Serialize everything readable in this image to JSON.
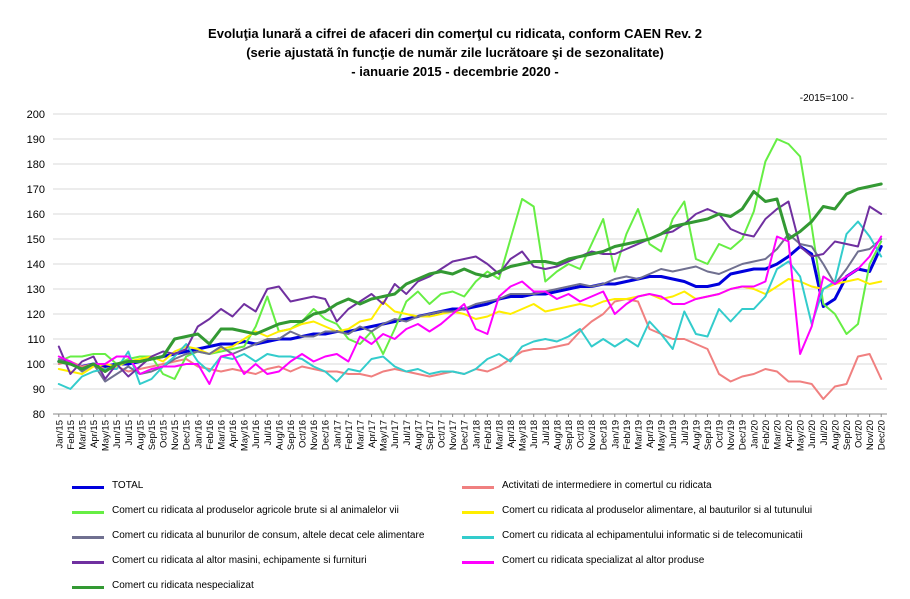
{
  "chart_data": {
    "type": "line",
    "title": [
      "Evoluţia lunară a cifrei de afaceri din comerţul cu ridicata,  conform CAEN Rev. 2",
      "(serie ajustată în funcţie de număr zile lucrătoare şi de sezonalitate)",
      "- ianuarie 2015 - decembrie  2020  -"
    ],
    "note": "-2015=100 -",
    "xlabel": "",
    "ylabel": "",
    "ylim": [
      80,
      200
    ],
    "yticks": [
      80,
      90,
      100,
      110,
      120,
      130,
      140,
      150,
      160,
      170,
      180,
      190,
      200
    ],
    "grid": true,
    "legend_position": "bottom",
    "x": [
      "Jan/15",
      "Feb/15",
      "Mar/15",
      "Apr/15",
      "May/15",
      "Jun/15",
      "Jul/15",
      "Aug/15",
      "Sep/15",
      "Oct/15",
      "Nov/15",
      "Dec/15",
      "Jan/16",
      "Feb/16",
      "Mar/16",
      "Apr/16",
      "May/16",
      "Jun/16",
      "Jul/16",
      "Aug/16",
      "Sep/16",
      "Oct/16",
      "Nov/16",
      "Dec/16",
      "Jan/17",
      "Feb/17",
      "Mar/17",
      "Apr/17",
      "May/17",
      "Jun/17",
      "Jul/17",
      "Aug/17",
      "Sep/17",
      "Oct/17",
      "Nov/17",
      "Dec/17",
      "Jan/18",
      "Feb/18",
      "Mar/18",
      "Apr/18",
      "May/18",
      "Jun/18",
      "Jul/18",
      "Aug/18",
      "Sep/18",
      "Oct/18",
      "Nov/18",
      "Dec/18",
      "Jan/19",
      "Feb/19",
      "Mar/19",
      "Apr/19",
      "May/19",
      "Jun/19",
      "Jul/19",
      "Aug/19",
      "Sep/19",
      "Oct/19",
      "Nov/19",
      "Dec/19",
      "Jan/20",
      "Feb/20",
      "Mar/20",
      "Apr/20",
      "May/20",
      "Jun/20",
      "Jul/20",
      "Aug/20",
      "Sep/20",
      "Oct/20",
      "Nov/20",
      "Dec/20"
    ],
    "tick_labels": [
      "Jan/15",
      "Mar/15",
      "May/15",
      "Jul/15",
      "Sep/15",
      "Nov/15",
      "Jan/16",
      "Mar/16",
      "May/16",
      "Jul/16",
      "Sep/16",
      "Nov/16",
      "Jan/17",
      "Mar/17",
      "May/17",
      "Jul/17",
      "Sep/17",
      "Nov/17",
      "Jan/18",
      "Mar/18",
      "May/18",
      "Jul/18",
      "Sep/18",
      "Nov/18",
      "Jan/19",
      "Mar/19",
      "May/19",
      "Jul/19",
      "Sep/19",
      "Nov/19",
      "Jan/20",
      "Mar/20",
      "May/20",
      "Jul/20",
      "Sep/20",
      "Nov/20",
      "Feb/15",
      "Apr/15",
      "Jun/15",
      "Aug/15",
      "Oct/15",
      "Dec/15",
      "Feb/16",
      "Apr/16",
      "Jun/16",
      "Aug/16",
      "Oct/16",
      "Dec/16",
      "Feb/17",
      "Apr/17",
      "Jun/17",
      "Aug/17",
      "Oct/17",
      "Dec/17",
      "Feb/18",
      "Apr/18",
      "Jun/18",
      "Aug/18",
      "Oct/18",
      "Dec/18",
      "Feb/19",
      "Apr/19",
      "Jun/19",
      "Aug/19",
      "Oct/19",
      "Dec/19",
      "Feb/20",
      "Apr/20",
      "Jun/20",
      "Aug/20",
      "Oct/20",
      "Dec/20"
    ],
    "series": [
      {
        "name": "TOTAL",
        "color": "#0000dd",
        "width": 3,
        "values": [
          101,
          100,
          99,
          100,
          99,
          100,
          100,
          101,
          102,
          103,
          104,
          105,
          106,
          107,
          108,
          108,
          109,
          108,
          109,
          110,
          110,
          111,
          112,
          112,
          113,
          113,
          114,
          115,
          116,
          117,
          118,
          119,
          120,
          121,
          122,
          122,
          123,
          124,
          126,
          127,
          127,
          128,
          128,
          129,
          130,
          131,
          131,
          132,
          132,
          133,
          134,
          135,
          135,
          134,
          133,
          131,
          131,
          132,
          136,
          137,
          138,
          138,
          140,
          143,
          147,
          144,
          123,
          126,
          135,
          138,
          137,
          147
        ]
      },
      {
        "name": "Activitati de intermediere in comertul cu ridicata",
        "color": "#f08080",
        "width": 2,
        "values": [
          100,
          101,
          99,
          100,
          98,
          99,
          97,
          98,
          99,
          100,
          101,
          102,
          99,
          98,
          97,
          98,
          97,
          96,
          98,
          99,
          97,
          99,
          98,
          97,
          97,
          96,
          96,
          95,
          97,
          98,
          97,
          96,
          95,
          96,
          97,
          96,
          98,
          97,
          99,
          102,
          105,
          106,
          106,
          107,
          108,
          113,
          117,
          120,
          125,
          126,
          125,
          114,
          112,
          110,
          110,
          108,
          106,
          96,
          93,
          95,
          96,
          98,
          97,
          93,
          93,
          92,
          86,
          91,
          92,
          103,
          104,
          94
        ]
      },
      {
        "name": "Comert cu ridicata al produselor agricole brute si al animalelor vii",
        "color": "#66ee44",
        "width": 2,
        "values": [
          101,
          103,
          103,
          104,
          104,
          100,
          102,
          103,
          103,
          96,
          94,
          103,
          105,
          104,
          105,
          106,
          107,
          115,
          127,
          113,
          114,
          117,
          122,
          118,
          116,
          110,
          108,
          113,
          104,
          114,
          125,
          129,
          124,
          128,
          129,
          127,
          133,
          137,
          134,
          150,
          166,
          163,
          133,
          137,
          140,
          138,
          148,
          158,
          137,
          152,
          162,
          148,
          145,
          158,
          165,
          142,
          140,
          148,
          146,
          150,
          161,
          181,
          190,
          188,
          183,
          155,
          124,
          120,
          112,
          116,
          140,
          149
        ]
      },
      {
        "name": "Comert cu ridicata al produselor alimentare, al bauturilor si al tutunului",
        "color": "#ffee00",
        "width": 2,
        "values": [
          98,
          97,
          96,
          99,
          100,
          99,
          101,
          102,
          103,
          101,
          105,
          107,
          106,
          104,
          106,
          107,
          110,
          113,
          111,
          113,
          114,
          116,
          117,
          115,
          113,
          114,
          117,
          118,
          125,
          121,
          120,
          119,
          119,
          120,
          121,
          120,
          118,
          119,
          121,
          120,
          122,
          124,
          121,
          122,
          123,
          124,
          123,
          125,
          126,
          126,
          127,
          128,
          126,
          127,
          129,
          126,
          127,
          128,
          130,
          131,
          130,
          128,
          131,
          134,
          133,
          131,
          130,
          132,
          133,
          134,
          132,
          133
        ]
      },
      {
        "name": "Comert cu ridicata al bunurilor de consum, altele decat cele alimentare",
        "color": "#707090",
        "width": 2,
        "values": [
          102,
          101,
          97,
          100,
          93,
          96,
          99,
          96,
          97,
          99,
          102,
          104,
          105,
          104,
          107,
          104,
          106,
          108,
          110,
          110,
          113,
          111,
          111,
          113,
          113,
          112,
          115,
          113,
          116,
          118,
          117,
          119,
          120,
          121,
          121,
          122,
          124,
          125,
          126,
          128,
          128,
          128,
          129,
          130,
          131,
          132,
          131,
          132,
          134,
          135,
          134,
          136,
          138,
          137,
          138,
          139,
          137,
          136,
          138,
          140,
          141,
          142,
          146,
          152,
          148,
          147,
          140,
          132,
          138,
          145,
          146,
          150
        ]
      },
      {
        "name": "Comert cu ridicata al echipamentului informatic si de telecomunicatii",
        "color": "#33cccc",
        "width": 2,
        "values": [
          92,
          90,
          95,
          97,
          98,
          98,
          105,
          92,
          94,
          99,
          103,
          108,
          101,
          97,
          103,
          102,
          104,
          101,
          104,
          103,
          103,
          102,
          99,
          97,
          93,
          98,
          97,
          102,
          103,
          99,
          97,
          98,
          96,
          97,
          97,
          96,
          98,
          102,
          104,
          101,
          107,
          109,
          110,
          109,
          111,
          114,
          107,
          110,
          107,
          110,
          107,
          117,
          112,
          106,
          121,
          112,
          111,
          122,
          117,
          122,
          122,
          127,
          138,
          141,
          135,
          116,
          130,
          133,
          152,
          157,
          151,
          143
        ]
      },
      {
        "name": "Comert cu ridicata al altor masini, echipamente si furnituri",
        "color": "#7030a0",
        "width": 2,
        "values": [
          107,
          96,
          101,
          103,
          94,
          100,
          95,
          99,
          103,
          105,
          104,
          106,
          115,
          118,
          122,
          119,
          124,
          121,
          130,
          131,
          125,
          126,
          127,
          126,
          117,
          122,
          125,
          128,
          124,
          132,
          128,
          133,
          135,
          138,
          141,
          142,
          143,
          140,
          136,
          142,
          145,
          139,
          138,
          139,
          141,
          143,
          145,
          144,
          144,
          146,
          148,
          150,
          152,
          153,
          156,
          160,
          162,
          160,
          154,
          152,
          151,
          158,
          162,
          165,
          147,
          143,
          144,
          149,
          148,
          147,
          163,
          160
        ]
      },
      {
        "name": "Comert cu ridicata specializat al altor produse",
        "color": "#ff00ff",
        "width": 2,
        "values": [
          103,
          101,
          98,
          100,
          100,
          103,
          103,
          96,
          98,
          99,
          99,
          100,
          100,
          92,
          103,
          104,
          96,
          100,
          96,
          97,
          101,
          104,
          101,
          103,
          104,
          101,
          111,
          108,
          112,
          110,
          114,
          116,
          113,
          116,
          120,
          124,
          114,
          112,
          127,
          131,
          133,
          129,
          129,
          126,
          128,
          125,
          127,
          129,
          120,
          124,
          127,
          128,
          127,
          124,
          124,
          126,
          127,
          128,
          130,
          131,
          131,
          133,
          151,
          149,
          104,
          115,
          135,
          132,
          135,
          138,
          143,
          151
        ]
      },
      {
        "name": "Comert cu ridicata nespecializat",
        "color": "#339933",
        "width": 3,
        "values": [
          101,
          100,
          98,
          100,
          97,
          100,
          101,
          101,
          102,
          103,
          110,
          111,
          112,
          108,
          114,
          114,
          113,
          112,
          114,
          116,
          117,
          117,
          120,
          121,
          124,
          126,
          124,
          126,
          127,
          128,
          132,
          134,
          136,
          137,
          136,
          138,
          136,
          135,
          137,
          139,
          140,
          141,
          141,
          140,
          142,
          143,
          144,
          145,
          147,
          148,
          149,
          150,
          152,
          155,
          156,
          157,
          158,
          160,
          159,
          162,
          169,
          165,
          166,
          150,
          153,
          157,
          163,
          162,
          168,
          170,
          171,
          172
        ]
      }
    ]
  }
}
